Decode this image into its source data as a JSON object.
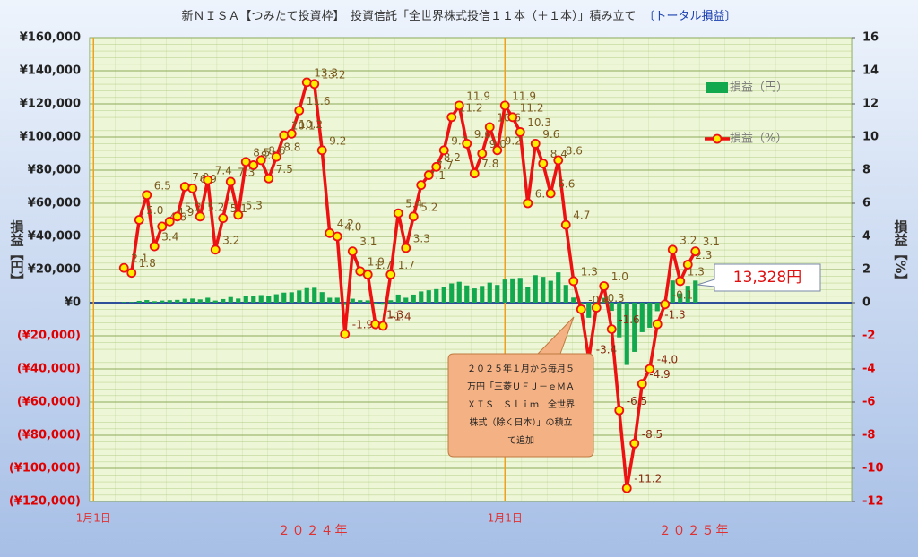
{
  "chart_data": {
    "type": "combo",
    "title": "新ＮＩＳＡ【つみたて投資枠】　投資信託「全世界株式投信１１本（＋１本）」積み立て",
    "title_note": "〔トータル損益〕",
    "y_label": "損益【円】",
    "y2_label": "損益【%】",
    "categories": [
      "1月1日",
      null,
      null,
      null,
      null,
      null,
      null,
      null,
      null,
      null,
      null,
      null,
      null,
      null,
      null,
      null,
      null,
      null,
      null,
      null,
      null,
      null,
      null,
      null,
      null,
      null,
      null,
      null,
      null,
      null,
      null,
      null,
      null,
      null,
      null,
      null,
      null,
      null,
      null,
      null,
      null,
      null,
      null,
      null,
      null,
      null,
      null,
      null,
      null,
      null,
      null,
      null,
      null,
      null,
      "1月1日",
      null,
      null,
      null,
      null,
      null,
      null,
      null,
      null,
      null,
      null,
      null,
      null,
      null,
      null,
      null,
      null,
      null,
      null,
      null,
      null,
      null,
      null,
      null,
      null,
      null,
      null,
      null,
      null,
      null,
      null,
      null,
      null,
      null,
      null,
      null,
      null,
      null,
      null,
      null,
      null,
      null,
      null,
      null,
      null,
      null
    ],
    "x_group_labels": [
      "２０２４年",
      "２０２５年"
    ],
    "ylim": [
      -120000,
      160000
    ],
    "yticks": [
      {
        "value": 160000,
        "label": "¥160,000"
      },
      {
        "value": 140000,
        "label": "¥140,000"
      },
      {
        "value": 120000,
        "label": "¥120,000"
      },
      {
        "value": 100000,
        "label": "¥100,000"
      },
      {
        "value": 80000,
        "label": "¥80,000"
      },
      {
        "value": 60000,
        "label": "¥60,000"
      },
      {
        "value": 40000,
        "label": "¥40,000"
      },
      {
        "value": 20000,
        "label": "¥20,000"
      },
      {
        "value": 0,
        "label": "¥0"
      },
      {
        "value": -20000,
        "label": "(¥20,000)"
      },
      {
        "value": -40000,
        "label": "(¥40,000)"
      },
      {
        "value": -60000,
        "label": "(¥60,000)"
      },
      {
        "value": -80000,
        "label": "(¥80,000)"
      },
      {
        "value": -100000,
        "label": "(¥100,000)"
      },
      {
        "value": -120000,
        "label": "(¥120,000)"
      }
    ],
    "y2lim": [
      -12,
      16
    ],
    "y2ticks": [
      16,
      14,
      12,
      10,
      8,
      6,
      4,
      2,
      0,
      -2,
      -4,
      -6,
      -8,
      -10,
      -12
    ],
    "negative_tick_color": "#e00000",
    "grid": true,
    "legend": "upper right",
    "series": [
      {
        "name": "損益（円）",
        "type": "bar",
        "color": "#12a84e",
        "axis": "y",
        "values": [
          null,
          null,
          null,
          null,
          400,
          400,
          1100,
          1600,
          900,
          1300,
          1500,
          1700,
          2400,
          2500,
          2000,
          3000,
          1300,
          2200,
          3400,
          2500,
          4300,
          4300,
          4600,
          4200,
          5100,
          6100,
          6300,
          7400,
          8800,
          9000,
          6400,
          3000,
          3000,
          -1400,
          2400,
          1500,
          1400,
          -1100,
          -1200,
          1500,
          4900,
          3000,
          4900,
          6800,
          7500,
          8200,
          9400,
          11600,
          12600,
          10400,
          8600,
          10100,
          12100,
          10700,
          14000,
          14700,
          15000,
          9500,
          16600,
          15600,
          13200,
          18300,
          10700,
          3100,
          -1000,
          -9100,
          -800,
          2900,
          -4900,
          -20900,
          -37600,
          -29700,
          -17800,
          -15100,
          -5100,
          -400,
          13400,
          5600,
          10200,
          13328,
          null,
          null,
          null,
          null,
          null,
          null,
          null,
          null,
          null,
          null,
          null,
          null,
          null,
          null,
          null,
          null,
          null,
          null,
          null,
          null
        ]
      },
      {
        "name": "損益（%）",
        "type": "line",
        "color": "#ee1111",
        "marker_color": "#ffee00",
        "axis": "y2",
        "values": [
          null,
          null,
          null,
          null,
          2.1,
          1.8,
          5.0,
          6.5,
          3.4,
          4.6,
          4.9,
          5.2,
          7.0,
          6.9,
          5.2,
          7.4,
          3.2,
          5.1,
          7.3,
          5.3,
          8.5,
          8.3,
          8.6,
          7.5,
          8.8,
          10.1,
          10.2,
          11.6,
          13.3,
          13.2,
          9.2,
          4.2,
          4.0,
          -1.9,
          3.1,
          1.9,
          1.7,
          -1.3,
          -1.4,
          1.7,
          5.4,
          3.3,
          5.2,
          7.1,
          7.7,
          8.2,
          9.2,
          11.2,
          11.9,
          9.6,
          7.8,
          9.0,
          10.6,
          9.2,
          11.9,
          11.2,
          10.3,
          6.0,
          9.6,
          8.4,
          6.6,
          8.6,
          4.7,
          1.3,
          -0.4,
          -3.4,
          -0.3,
          1.0,
          -1.6,
          -6.5,
          -11.2,
          -8.5,
          -4.9,
          -4.0,
          -1.3,
          -0.1,
          3.2,
          1.3,
          2.3,
          3.1,
          null,
          null,
          null,
          null,
          null,
          null,
          null,
          null,
          null,
          null,
          null,
          null,
          null,
          null,
          null,
          null,
          null,
          null,
          null,
          null
        ],
        "value_labels": [
          null,
          null,
          null,
          null,
          "2.1",
          "1.8",
          "5.0",
          "6.5",
          "3.4",
          "4.6",
          "4.9",
          "5.2",
          "7.0",
          "6.9",
          "5.2",
          "7.4",
          "3.2",
          "5.1",
          "7.3",
          "5.3",
          "8.5",
          "8.3",
          "8.6",
          "7.5",
          "8.8",
          "10.1",
          "10.2",
          "11.6",
          "13.3",
          "13.2",
          "9.2",
          "4.2",
          "4.0",
          "-1.9",
          "3.1",
          "1.9",
          "1.7",
          "-1.3",
          "-1.4",
          "1.7",
          "5.4",
          "3.3",
          "5.2",
          "7.1",
          "7.7",
          "8.2",
          "9.2",
          "11.2",
          "11.9",
          "9.6",
          "7.8",
          "9.0",
          "10.6",
          "9.2",
          "11.9",
          "11.2",
          "10.3",
          "6.0",
          "9.6",
          "8.4",
          "6.6",
          "8.6",
          "4.7",
          "1.3",
          "-0.4",
          "-3.4",
          "-0.3",
          "1.0",
          "-1.6",
          "-6.5",
          "-11.2",
          "-8.5",
          "-4.9",
          "-4.0",
          "-1.3",
          "-0.1",
          "3.2",
          "1.3",
          "2.3",
          "3.1",
          null,
          null,
          null,
          null,
          null,
          null,
          null,
          null,
          null,
          null,
          null,
          null,
          null,
          null,
          null,
          null,
          null,
          null,
          null,
          null
        ]
      }
    ],
    "annotations": {
      "total_callout": "13,328円",
      "note_lines": [
        "２０２５年１月から毎月５",
        "万円「三菱ＵＦＪ－ｅＭＡ",
        "ＸＩＳ　Ｓｌｉｍ　全世界",
        "株式（除く日本）」の積立",
        "て追加"
      ]
    }
  }
}
